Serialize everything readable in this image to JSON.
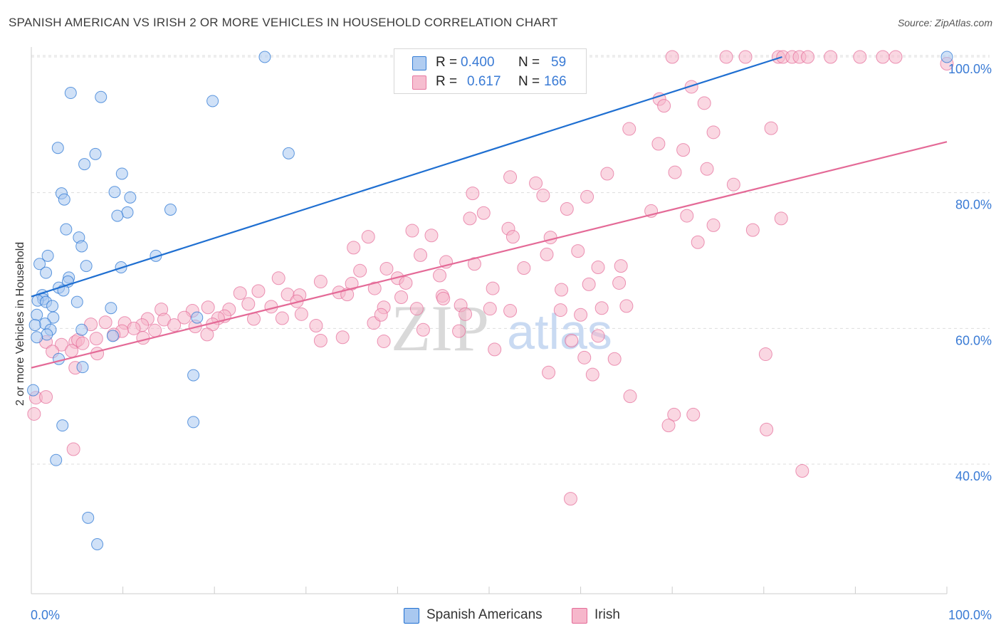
{
  "title": "SPANISH AMERICAN VS IRISH 2 OR MORE VEHICLES IN HOUSEHOLD CORRELATION CHART",
  "source": "Source: ZipAtlas.com",
  "watermark": {
    "zip": "ZIP",
    "atlas": "atlas"
  },
  "colors": {
    "blue_fill": "#a9c8f0",
    "blue_line": "#1f6fd1",
    "pink_fill": "#f6b7cb",
    "pink_line": "#e46a97",
    "axis_text": "#3a7bd5",
    "grid": "#dddddd"
  },
  "legend": {
    "rows": [
      {
        "r_label": "R =",
        "r_value": "0.400",
        "n_label": "N =",
        "n_value": "59",
        "color": "#a9c8f0"
      },
      {
        "r_label": "R =",
        "r_value": "0.617",
        "n_label": "N =",
        "n_value": "166",
        "color": "#f6b7cb"
      }
    ]
  },
  "bottom_legend": [
    {
      "label": "Spanish Americans",
      "color": "#a9c8f0"
    },
    {
      "label": "Irish",
      "color": "#f6b7cb"
    }
  ],
  "chart_data": {
    "type": "scatter",
    "ylabel": "2 or more Vehicles in Household",
    "xlabel": "",
    "xlim": [
      0,
      100
    ],
    "ylim": [
      20,
      103
    ],
    "x_tick_labels": [
      {
        "value": 0,
        "label": "0.0%"
      },
      {
        "value": 100,
        "label": "100.0%"
      }
    ],
    "y_tick_labels": [
      {
        "value": 40,
        "label": "40.0%"
      },
      {
        "value": 60,
        "label": "60.0%"
      },
      {
        "value": 80,
        "label": "80.0%"
      },
      {
        "value": 100,
        "label": "100.0%"
      }
    ],
    "grid": true,
    "series": [
      {
        "name": "Spanish Americans",
        "color": "#a9c8f0",
        "trend": {
          "x": [
            0,
            82
          ],
          "y": [
            64.7,
            100
          ]
        },
        "points": [
          [
            25.5,
            100
          ],
          [
            4.3,
            94.7
          ],
          [
            7.6,
            94.1
          ],
          [
            19.8,
            93.5
          ],
          [
            28.1,
            85.8
          ],
          [
            2.9,
            86.6
          ],
          [
            7.0,
            85.7
          ],
          [
            5.8,
            84.2
          ],
          [
            9.9,
            82.8
          ],
          [
            3.3,
            79.9
          ],
          [
            9.1,
            80.1
          ],
          [
            10.8,
            79.3
          ],
          [
            3.6,
            79.0
          ],
          [
            10.5,
            77.1
          ],
          [
            9.4,
            76.6
          ],
          [
            15.2,
            77.5
          ],
          [
            3.8,
            74.6
          ],
          [
            5.2,
            73.4
          ],
          [
            5.5,
            72.1
          ],
          [
            1.8,
            70.7
          ],
          [
            13.6,
            70.7
          ],
          [
            0.9,
            69.5
          ],
          [
            6.0,
            69.2
          ],
          [
            9.8,
            69.0
          ],
          [
            1.6,
            68.2
          ],
          [
            4.1,
            67.5
          ],
          [
            4.0,
            66.9
          ],
          [
            3.0,
            66.0
          ],
          [
            3.5,
            65.6
          ],
          [
            1.2,
            64.9
          ],
          [
            1.3,
            64.3
          ],
          [
            0.7,
            64.1
          ],
          [
            1.6,
            63.9
          ],
          [
            2.3,
            63.3
          ],
          [
            0.6,
            62.0
          ],
          [
            2.4,
            61.6
          ],
          [
            5.0,
            63.9
          ],
          [
            8.7,
            63.0
          ],
          [
            1.5,
            60.7
          ],
          [
            0.4,
            60.5
          ],
          [
            2.1,
            59.8
          ],
          [
            5.5,
            59.8
          ],
          [
            1.7,
            59.1
          ],
          [
            8.9,
            58.9
          ],
          [
            0.6,
            58.7
          ],
          [
            18.1,
            61.6
          ],
          [
            3.0,
            55.5
          ],
          [
            5.6,
            54.3
          ],
          [
            17.7,
            53.1
          ],
          [
            0.2,
            50.9
          ],
          [
            3.4,
            45.7
          ],
          [
            17.7,
            46.2
          ],
          [
            2.7,
            40.6
          ],
          [
            6.2,
            32.1
          ],
          [
            7.2,
            28.2
          ],
          [
            100,
            100
          ]
        ]
      },
      {
        "name": "Irish",
        "color": "#f6b7cb",
        "trend": {
          "x": [
            0,
            100
          ],
          "y": [
            54.2,
            87.5
          ]
        },
        "points": [
          [
            70.0,
            100
          ],
          [
            75.9,
            100
          ],
          [
            78.0,
            100
          ],
          [
            81.6,
            100
          ],
          [
            82.1,
            100
          ],
          [
            83.1,
            100
          ],
          [
            83.9,
            100
          ],
          [
            84.8,
            100
          ],
          [
            87.3,
            100
          ],
          [
            90.5,
            100
          ],
          [
            93.0,
            100
          ],
          [
            94.4,
            100
          ],
          [
            100,
            99
          ],
          [
            72.1,
            95.6
          ],
          [
            68.6,
            93.8
          ],
          [
            69.1,
            92.8
          ],
          [
            73.5,
            93.2
          ],
          [
            65.3,
            89.4
          ],
          [
            74.5,
            88.9
          ],
          [
            80.8,
            89.5
          ],
          [
            68.5,
            87.2
          ],
          [
            71.2,
            86.3
          ],
          [
            70.3,
            83.0
          ],
          [
            73.8,
            83.5
          ],
          [
            62.9,
            82.8
          ],
          [
            52.3,
            82.3
          ],
          [
            55.1,
            81.4
          ],
          [
            60.7,
            79.4
          ],
          [
            55.9,
            79.6
          ],
          [
            76.7,
            81.2
          ],
          [
            48.2,
            79.9
          ],
          [
            49.4,
            77.0
          ],
          [
            47.9,
            76.2
          ],
          [
            58.5,
            77.6
          ],
          [
            67.7,
            77.3
          ],
          [
            71.6,
            76.6
          ],
          [
            81.9,
            76.2
          ],
          [
            74.5,
            75.2
          ],
          [
            78.8,
            74.5
          ],
          [
            41.6,
            74.4
          ],
          [
            43.7,
            73.7
          ],
          [
            52.1,
            74.7
          ],
          [
            52.6,
            73.5
          ],
          [
            56.7,
            73.4
          ],
          [
            36.8,
            73.5
          ],
          [
            35.2,
            71.9
          ],
          [
            72.8,
            72.7
          ],
          [
            42.5,
            70.8
          ],
          [
            56.3,
            70.9
          ],
          [
            59.7,
            71.4
          ],
          [
            45.3,
            69.8
          ],
          [
            48.4,
            69.5
          ],
          [
            53.8,
            68.9
          ],
          [
            61.9,
            69.0
          ],
          [
            64.4,
            69.2
          ],
          [
            35.9,
            68.5
          ],
          [
            38.8,
            68.8
          ],
          [
            44.6,
            67.8
          ],
          [
            40.0,
            67.4
          ],
          [
            27.0,
            67.4
          ],
          [
            31.6,
            66.9
          ],
          [
            35.0,
            66.6
          ],
          [
            40.9,
            66.7
          ],
          [
            33.6,
            65.3
          ],
          [
            37.5,
            65.9
          ],
          [
            50.4,
            65.9
          ],
          [
            57.9,
            65.7
          ],
          [
            60.9,
            66.5
          ],
          [
            64.2,
            66.7
          ],
          [
            24.8,
            65.5
          ],
          [
            22.8,
            65.2
          ],
          [
            28.0,
            65.0
          ],
          [
            29.3,
            64.9
          ],
          [
            34.5,
            65.0
          ],
          [
            40.4,
            64.6
          ],
          [
            44.9,
            64.8
          ],
          [
            46.9,
            63.4
          ],
          [
            29.0,
            64.0
          ],
          [
            23.7,
            63.6
          ],
          [
            26.2,
            63.2
          ],
          [
            21.6,
            62.8
          ],
          [
            19.3,
            63.1
          ],
          [
            17.6,
            62.6
          ],
          [
            14.2,
            62.8
          ],
          [
            38.5,
            63.1
          ],
          [
            42.1,
            62.9
          ],
          [
            50.1,
            62.9
          ],
          [
            52.3,
            62.6
          ],
          [
            47.4,
            62.1
          ],
          [
            57.8,
            62.7
          ],
          [
            60.0,
            62.0
          ],
          [
            65.0,
            63.3
          ],
          [
            29.5,
            62.1
          ],
          [
            21.1,
            61.8
          ],
          [
            20.4,
            61.5
          ],
          [
            24.3,
            61.4
          ],
          [
            27.4,
            61.5
          ],
          [
            16.7,
            61.6
          ],
          [
            14.5,
            61.3
          ],
          [
            12.7,
            61.4
          ],
          [
            12.1,
            60.5
          ],
          [
            17.9,
            60.3
          ],
          [
            15.6,
            60.5
          ],
          [
            19.8,
            60.6
          ],
          [
            8.1,
            60.9
          ],
          [
            10.2,
            60.8
          ],
          [
            6.5,
            60.6
          ],
          [
            11.2,
            60.0
          ],
          [
            9.9,
            59.6
          ],
          [
            13.5,
            59.7
          ],
          [
            9.0,
            59.1
          ],
          [
            7.1,
            58.5
          ],
          [
            12.2,
            58.6
          ],
          [
            19.2,
            59.1
          ],
          [
            31.1,
            60.4
          ],
          [
            37.4,
            60.8
          ],
          [
            42.8,
            59.8
          ],
          [
            31.6,
            58.2
          ],
          [
            34.0,
            58.7
          ],
          [
            4.8,
            58.0
          ],
          [
            5.1,
            58.3
          ],
          [
            1.6,
            58.0
          ],
          [
            5.6,
            57.8
          ],
          [
            3.3,
            57.6
          ],
          [
            2.3,
            56.6
          ],
          [
            4.4,
            56.7
          ],
          [
            7.2,
            56.3
          ],
          [
            50.6,
            56.9
          ],
          [
            59.0,
            58.2
          ],
          [
            80.2,
            56.2
          ],
          [
            60.4,
            55.7
          ],
          [
            63.7,
            55.5
          ],
          [
            38.5,
            58.1
          ],
          [
            4.8,
            54.2
          ],
          [
            56.5,
            53.5
          ],
          [
            61.3,
            53.2
          ],
          [
            65.4,
            50.0
          ],
          [
            0.5,
            49.8
          ],
          [
            1.6,
            49.9
          ],
          [
            70.2,
            47.3
          ],
          [
            72.3,
            47.3
          ],
          [
            69.6,
            45.7
          ],
          [
            80.3,
            45.1
          ],
          [
            4.6,
            42.2
          ],
          [
            84.2,
            39.0
          ],
          [
            58.9,
            34.9
          ],
          [
            0.3,
            47.4
          ],
          [
            61.9,
            58.9
          ],
          [
            46.7,
            59.6
          ],
          [
            45.0,
            64.4
          ],
          [
            62.3,
            63.0
          ],
          [
            38.2,
            62.0
          ]
        ]
      }
    ]
  }
}
